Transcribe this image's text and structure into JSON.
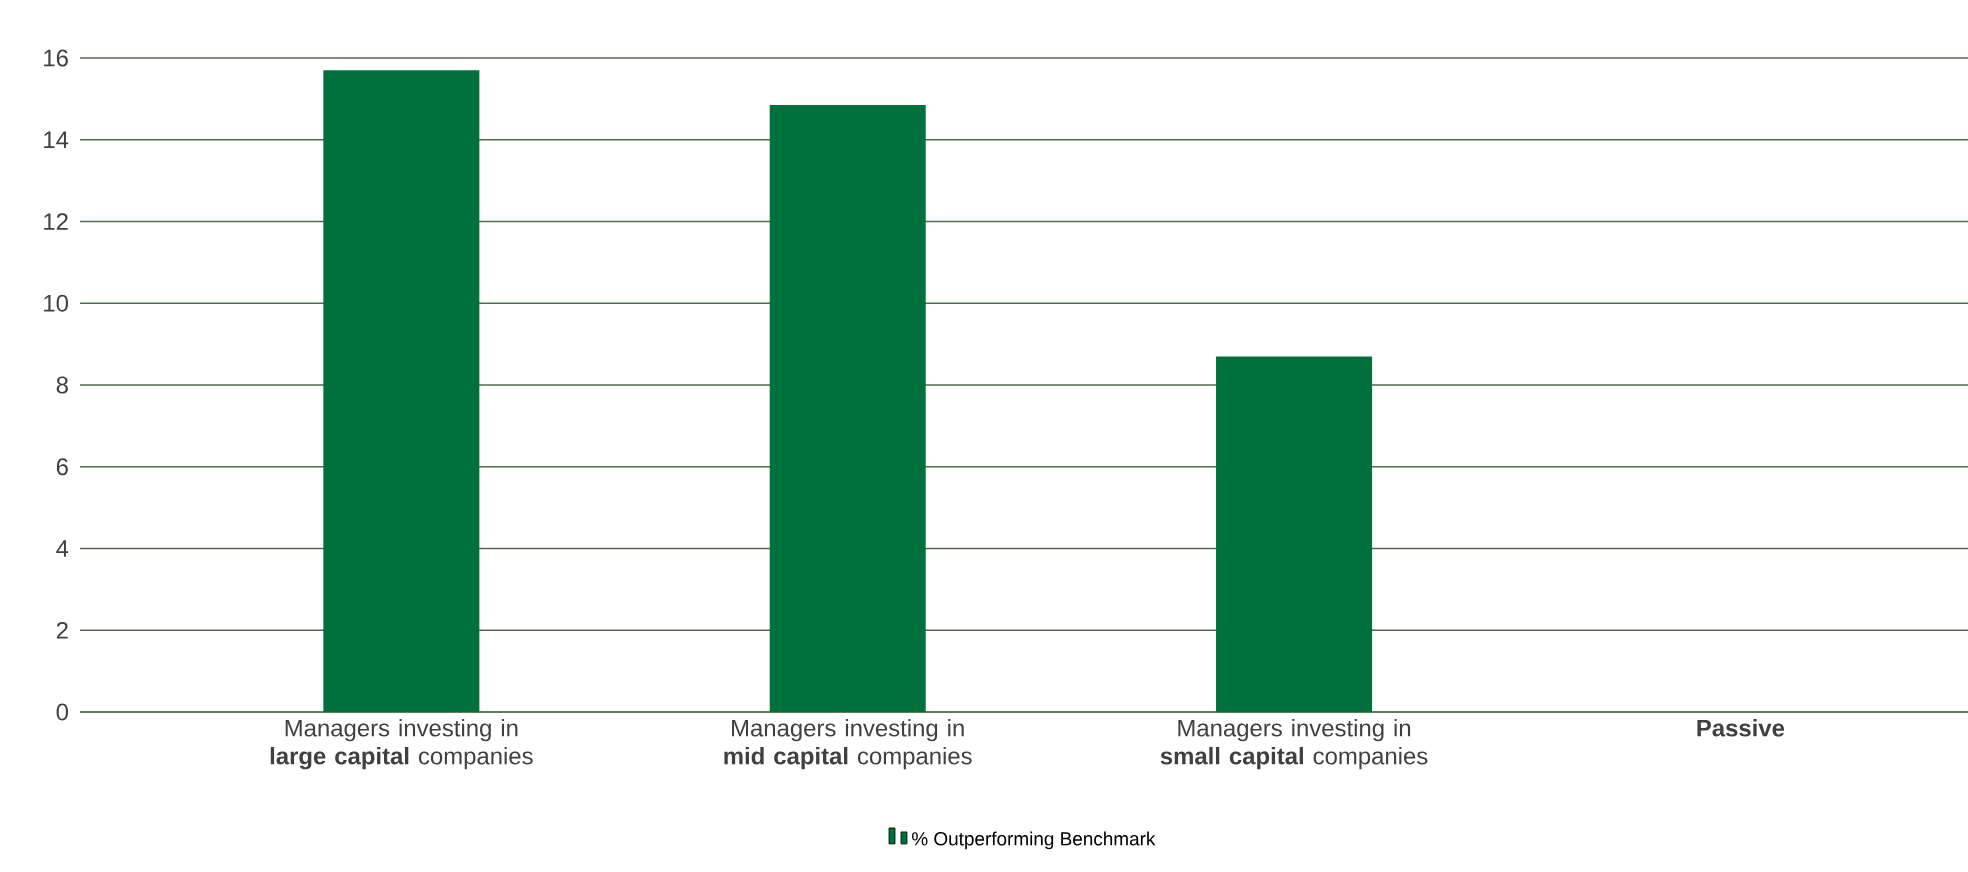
{
  "chart_data": {
    "type": "bar",
    "categories": [
      "Managers investing in **large capital** companies",
      "Managers investing in **mid capital** companies",
      "Managers investing in **small capital** companies",
      "**Passive**"
    ],
    "series": [
      {
        "name": "% Outperforming Benchmark",
        "color": "#00703c",
        "values": [
          15.7,
          14.85,
          8.7,
          0
        ]
      }
    ],
    "ylim": [
      0,
      16
    ],
    "yticks": [
      0,
      2,
      4,
      6,
      8,
      10,
      12,
      14,
      16
    ],
    "grid": "y",
    "legend": "bottom"
  }
}
